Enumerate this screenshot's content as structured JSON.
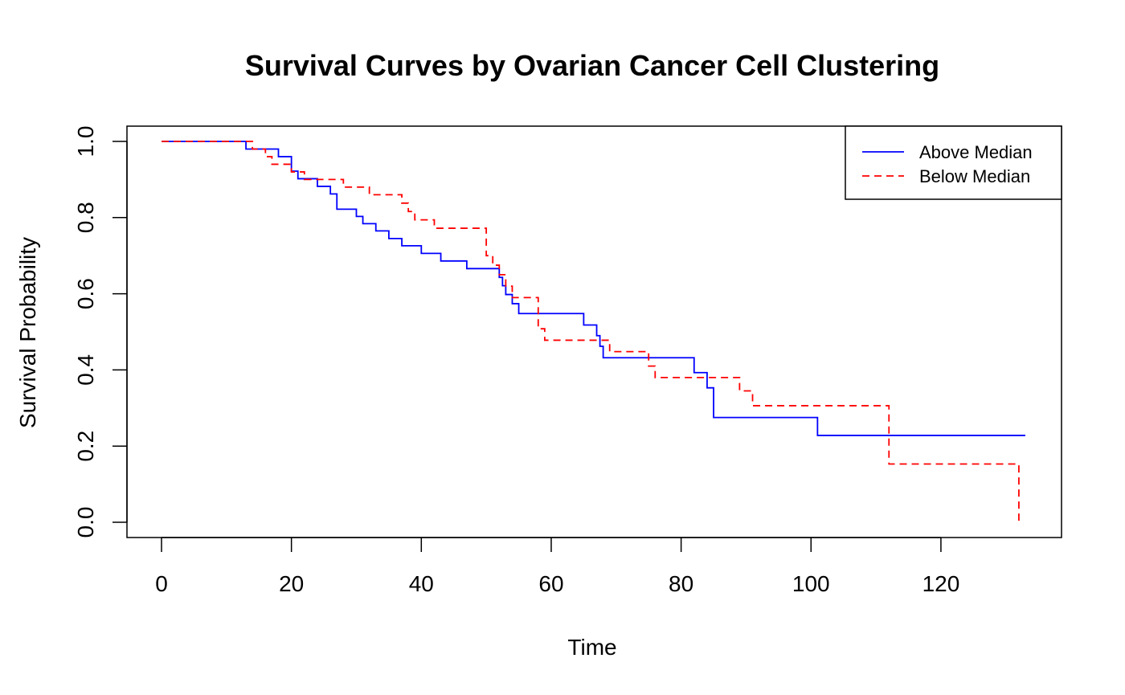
{
  "chart_data": {
    "type": "line",
    "step": true,
    "title": "Survival Curves by Ovarian Cancer Cell Clustering",
    "xlabel": "Time",
    "ylabel": "Survival Probability",
    "xlim": [
      0,
      133
    ],
    "ylim": [
      0,
      1
    ],
    "xticks": [
      0,
      20,
      40,
      60,
      80,
      100,
      120
    ],
    "yticks": [
      0.0,
      0.2,
      0.4,
      0.6,
      0.8,
      1.0
    ],
    "xtick_labels": [
      "0",
      "20",
      "40",
      "60",
      "80",
      "100",
      "120"
    ],
    "ytick_labels": [
      "0.0",
      "0.2",
      "0.4",
      "0.6",
      "0.8",
      "1.0"
    ],
    "grid": false,
    "legend": {
      "position": "top-right"
    },
    "series": [
      {
        "name": "Above Median",
        "color": "#0000ff",
        "line_style": "solid",
        "x": [
          0,
          13,
          18,
          20,
          21,
          24,
          26,
          27,
          30,
          31,
          33,
          35,
          37,
          40,
          43,
          47,
          52,
          52.5,
          53,
          54,
          55,
          58,
          65,
          67,
          67.5,
          68,
          82,
          84,
          85,
          101,
          133
        ],
        "y": [
          1.0,
          0.98,
          0.96,
          0.922,
          0.902,
          0.882,
          0.862,
          0.822,
          0.803,
          0.784,
          0.765,
          0.745,
          0.726,
          0.706,
          0.686,
          0.666,
          0.643,
          0.621,
          0.598,
          0.574,
          0.548,
          0.548,
          0.518,
          0.49,
          0.462,
          0.432,
          0.393,
          0.353,
          0.275,
          0.228,
          0.228
        ]
      },
      {
        "name": "Below Median",
        "color": "#ff0000",
        "line_style": "dashed",
        "x": [
          0,
          14,
          16,
          17,
          20,
          22,
          28,
          32,
          37,
          38,
          39,
          40,
          42,
          50,
          51,
          52,
          53,
          54,
          55,
          58,
          59,
          61,
          69,
          75,
          76,
          89,
          91,
          112,
          132
        ],
        "y": [
          1.0,
          0.98,
          0.96,
          0.94,
          0.92,
          0.9,
          0.88,
          0.86,
          0.838,
          0.816,
          0.794,
          0.794,
          0.772,
          0.7,
          0.675,
          0.65,
          0.62,
          0.59,
          0.59,
          0.508,
          0.478,
          0.478,
          0.448,
          0.41,
          0.38,
          0.345,
          0.306,
          0.153,
          0.0
        ]
      }
    ]
  }
}
